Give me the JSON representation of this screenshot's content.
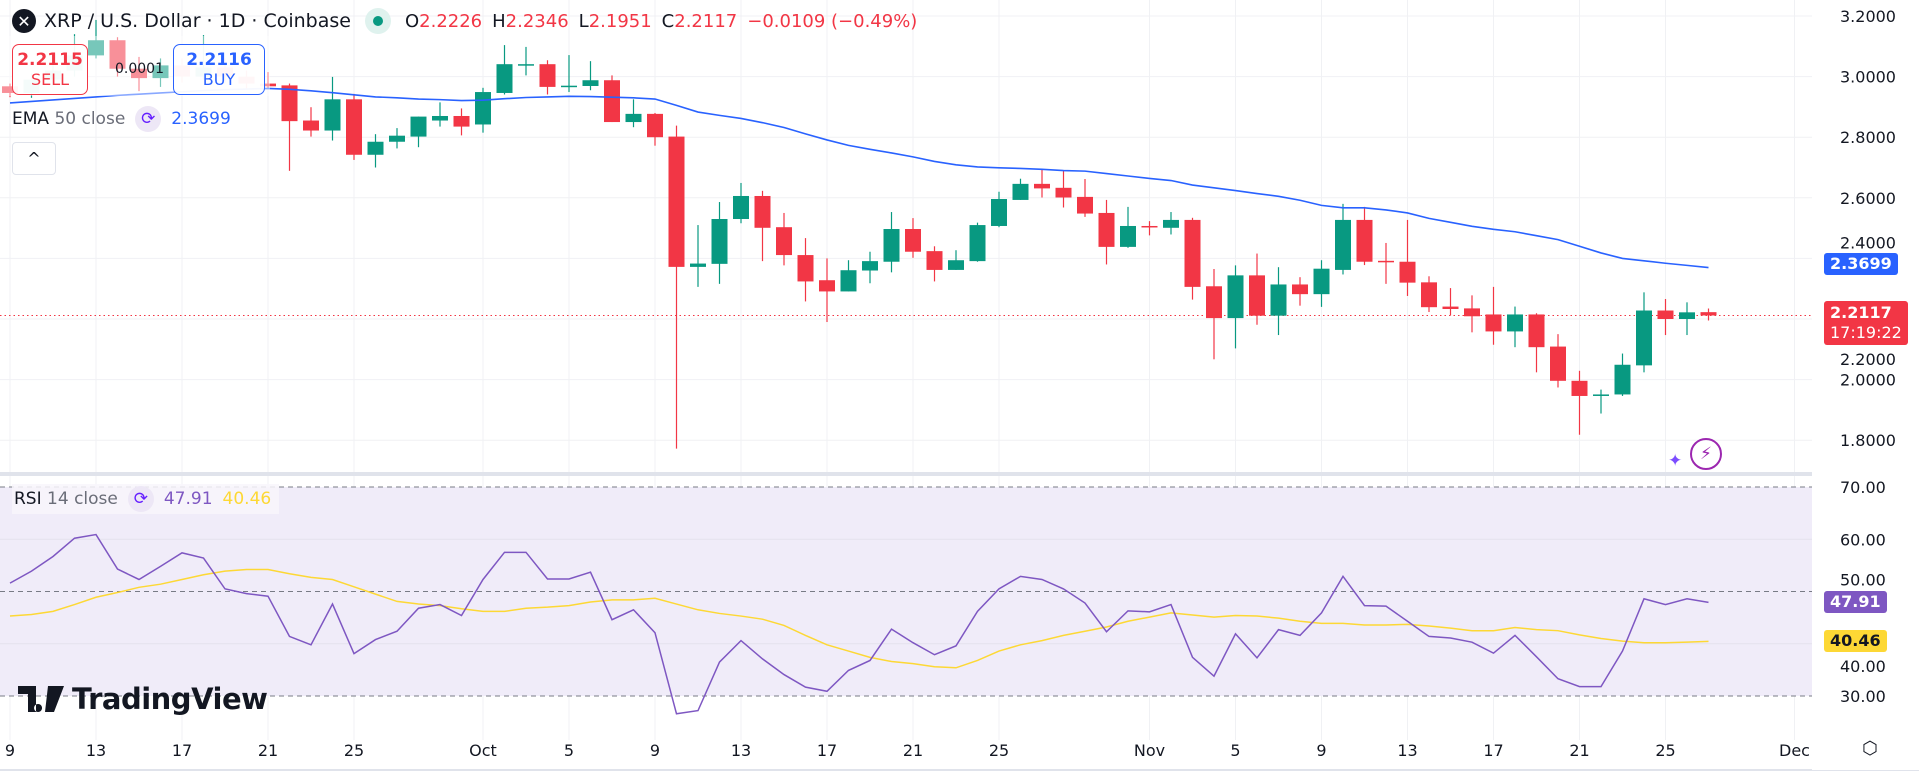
{
  "header": {
    "symbol_icon": "xrp-logo-icon",
    "title": "XRP / U.S. Dollar · 1D · Coinbase",
    "market_status": "market-open-dot-icon",
    "o_label": "O",
    "o_value": "2.2226",
    "h_label": "H",
    "h_value": "2.2346",
    "l_label": "L",
    "l_value": "2.1951",
    "c_label": "C",
    "c_value": "2.2117",
    "change": "−0.0109 (−0.49%)"
  },
  "trade": {
    "sell_price": "2.2115",
    "sell_label": "SELL",
    "buy_price": "2.2116",
    "buy_label": "BUY",
    "spread": "0.0001"
  },
  "ema_legend": {
    "name": "EMA",
    "args": "50 close",
    "value": "2.3699"
  },
  "rsi_legend": {
    "name": "RSI",
    "args": "14 close",
    "value": "47.91",
    "ma_value": "40.46"
  },
  "collapse_label": "^",
  "branding": "TradingView",
  "last_price_tag": {
    "price": "2.2117",
    "countdown": "17:19:22"
  },
  "ema_tag": "2.3699",
  "rsi_tag": "47.91",
  "rsi_ma_tag": "40.46",
  "colors": {
    "up": "#089981",
    "down": "#f23645",
    "ema": "#2962ff",
    "rsi": "#7e57c2",
    "rsi_ma": "#fdd835",
    "rsi_band": "#f0ecf9"
  },
  "chart_data": [
    {
      "type": "candlestick",
      "title": "XRP / U.S. Dollar · 1D · Coinbase",
      "ylim": [
        1.75,
        3.25
      ],
      "y_ticks": [
        "3.2000",
        "3.0000",
        "2.8000",
        "2.6000",
        "2.4000",
        "2.2000",
        "2.0000",
        "1.8000"
      ],
      "grid": true,
      "x_ticks": [
        {
          "label": "9",
          "date": "Sep 9"
        },
        {
          "label": "13",
          "date": "Sep 13"
        },
        {
          "label": "17",
          "date": "Sep 17"
        },
        {
          "label": "21",
          "date": "Sep 21"
        },
        {
          "label": "25",
          "date": "Sep 25"
        },
        {
          "label": "Oct",
          "date": "Oct 1"
        },
        {
          "label": "5",
          "date": "Oct 5"
        },
        {
          "label": "9",
          "date": "Oct 9"
        },
        {
          "label": "13",
          "date": "Oct 13"
        },
        {
          "label": "17",
          "date": "Oct 17"
        },
        {
          "label": "21",
          "date": "Oct 21"
        },
        {
          "label": "25",
          "date": "Oct 25"
        },
        {
          "label": "Nov",
          "date": "Nov 1"
        },
        {
          "label": "5",
          "date": "Nov 5"
        },
        {
          "label": "9",
          "date": "Nov 9"
        },
        {
          "label": "13",
          "date": "Nov 13"
        },
        {
          "label": "17",
          "date": "Nov 17"
        },
        {
          "label": "21",
          "date": "Nov 21"
        },
        {
          "label": "25",
          "date": "Nov 25"
        },
        {
          "label": "Dec",
          "date": "Dec 1"
        }
      ],
      "last_price": 2.2117,
      "candles_fields": [
        "date",
        "open",
        "high",
        "low",
        "close"
      ],
      "candles": [
        [
          "Sep 9",
          2.968,
          2.977,
          2.932,
          2.946
        ],
        [
          "Sep 10",
          2.946,
          3.01,
          2.93,
          2.99
        ],
        [
          "Sep 11",
          2.99,
          3.04,
          2.97,
          3.02
        ],
        [
          "Sep 12",
          3.02,
          3.14,
          3.0,
          3.07
        ],
        [
          "Sep 13",
          3.07,
          3.187,
          3.06,
          3.12
        ],
        [
          "Sep 14",
          3.12,
          3.13,
          3.0,
          3.026
        ],
        [
          "Sep 15",
          3.026,
          3.065,
          2.952,
          2.995
        ],
        [
          "Sep 16",
          2.995,
          3.06,
          2.966,
          3.037
        ],
        [
          "Sep 17",
          3.037,
          3.06,
          2.98,
          3.0
        ],
        [
          "Sep 18",
          3.0,
          3.137,
          2.99,
          3.03
        ],
        [
          "Sep 19",
          3.03,
          3.06,
          2.98,
          3.0
        ],
        [
          "Sep 20",
          3.0,
          3.02,
          2.96,
          2.977
        ],
        [
          "Sep 21",
          2.977,
          3.015,
          2.96,
          2.968
        ],
        [
          "Sep 22",
          2.971,
          2.977,
          2.689,
          2.853
        ],
        [
          "Sep 23",
          2.855,
          2.899,
          2.802,
          2.822
        ],
        [
          "Sep 24",
          2.822,
          2.999,
          2.789,
          2.925
        ],
        [
          "Sep 25",
          2.925,
          2.943,
          2.725,
          2.742
        ],
        [
          "Sep 26",
          2.742,
          2.81,
          2.7,
          2.785
        ],
        [
          "Sep 27",
          2.785,
          2.83,
          2.763,
          2.805
        ],
        [
          "Sep 28",
          2.802,
          2.868,
          2.767,
          2.868
        ],
        [
          "Sep 29",
          2.855,
          2.915,
          2.835,
          2.87
        ],
        [
          "Sep 30",
          2.87,
          2.895,
          2.806,
          2.835
        ],
        [
          "Oct 1",
          2.842,
          2.963,
          2.815,
          2.949
        ],
        [
          "Oct 2",
          2.946,
          3.104,
          2.941,
          3.041
        ],
        [
          "Oct 3",
          3.038,
          3.098,
          3.004,
          3.041
        ],
        [
          "Oct 4",
          3.041,
          3.054,
          2.941,
          2.966
        ],
        [
          "Oct 5",
          2.968,
          3.071,
          2.949,
          2.97
        ],
        [
          "Oct 6",
          2.969,
          3.051,
          2.955,
          2.988
        ],
        [
          "Oct 7",
          2.988,
          3.004,
          2.85,
          2.85
        ],
        [
          "Oct 8",
          2.85,
          2.925,
          2.833,
          2.877
        ],
        [
          "Oct 9",
          2.877,
          2.88,
          2.772,
          2.8
        ],
        [
          "Oct 10",
          2.802,
          2.838,
          1.772,
          2.372
        ],
        [
          "Oct 11",
          2.372,
          2.51,
          2.306,
          2.383
        ],
        [
          "Oct 12",
          2.382,
          2.586,
          2.316,
          2.53
        ],
        [
          "Oct 13",
          2.53,
          2.649,
          2.516,
          2.606
        ],
        [
          "Oct 14",
          2.606,
          2.623,
          2.391,
          2.501
        ],
        [
          "Oct 15",
          2.503,
          2.55,
          2.377,
          2.411
        ],
        [
          "Oct 16",
          2.411,
          2.467,
          2.258,
          2.324
        ],
        [
          "Oct 17",
          2.328,
          2.4,
          2.19,
          2.291
        ],
        [
          "Oct 18",
          2.291,
          2.394,
          2.291,
          2.361
        ],
        [
          "Oct 19",
          2.36,
          2.422,
          2.318,
          2.391
        ],
        [
          "Oct 20",
          2.389,
          2.553,
          2.354,
          2.497
        ],
        [
          "Oct 21",
          2.497,
          2.533,
          2.402,
          2.422
        ],
        [
          "Oct 22",
          2.424,
          2.44,
          2.324,
          2.362
        ],
        [
          "Oct 23",
          2.362,
          2.427,
          2.362,
          2.394
        ],
        [
          "Oct 24",
          2.391,
          2.518,
          2.389,
          2.51
        ],
        [
          "Oct 25",
          2.507,
          2.62,
          2.503,
          2.596
        ],
        [
          "Oct 26",
          2.593,
          2.663,
          2.593,
          2.646
        ],
        [
          "Oct 27",
          2.646,
          2.695,
          2.601,
          2.631
        ],
        [
          "Oct 28",
          2.633,
          2.689,
          2.568,
          2.601
        ],
        [
          "Oct 29",
          2.603,
          2.662,
          2.537,
          2.548
        ],
        [
          "Oct 30",
          2.55,
          2.593,
          2.38,
          2.438
        ],
        [
          "Oct 31",
          2.438,
          2.57,
          2.435,
          2.507
        ],
        [
          "Nov 1",
          2.507,
          2.523,
          2.476,
          2.503
        ],
        [
          "Nov 2",
          2.501,
          2.553,
          2.479,
          2.527
        ],
        [
          "Nov 3",
          2.527,
          2.534,
          2.264,
          2.306
        ],
        [
          "Nov 4",
          2.308,
          2.365,
          2.067,
          2.203
        ],
        [
          "Nov 5",
          2.203,
          2.377,
          2.103,
          2.344
        ],
        [
          "Nov 6",
          2.344,
          2.416,
          2.181,
          2.211
        ],
        [
          "Nov 7",
          2.211,
          2.371,
          2.147,
          2.314
        ],
        [
          "Nov 8",
          2.314,
          2.338,
          2.244,
          2.282
        ],
        [
          "Nov 9",
          2.282,
          2.394,
          2.24,
          2.366
        ],
        [
          "Nov 10",
          2.362,
          2.58,
          2.347,
          2.527
        ],
        [
          "Nov 11",
          2.527,
          2.57,
          2.378,
          2.389
        ],
        [
          "Nov 12",
          2.392,
          2.451,
          2.316,
          2.389
        ],
        [
          "Nov 13",
          2.389,
          2.527,
          2.276,
          2.32
        ],
        [
          "Nov 14",
          2.321,
          2.341,
          2.223,
          2.239
        ],
        [
          "Nov 15",
          2.241,
          2.302,
          2.212,
          2.233
        ],
        [
          "Nov 16",
          2.235,
          2.278,
          2.156,
          2.209
        ],
        [
          "Nov 17",
          2.215,
          2.306,
          2.115,
          2.159
        ],
        [
          "Nov 18",
          2.159,
          2.241,
          2.107,
          2.215
        ],
        [
          "Nov 19",
          2.215,
          2.219,
          2.024,
          2.107
        ],
        [
          "Nov 20",
          2.109,
          2.15,
          1.974,
          1.996
        ],
        [
          "Nov 21",
          1.996,
          2.029,
          1.818,
          1.946
        ],
        [
          "Nov 22",
          1.946,
          1.967,
          1.888,
          1.951
        ],
        [
          "Nov 23",
          1.951,
          2.086,
          1.946,
          2.049
        ],
        [
          "Nov 24",
          2.047,
          2.288,
          2.024,
          2.228
        ],
        [
          "Nov 25",
          2.228,
          2.266,
          2.147,
          2.2
        ],
        [
          "Nov 26",
          2.2,
          2.255,
          2.147,
          2.222
        ],
        [
          "Nov 27",
          2.2226,
          2.2346,
          2.1951,
          2.2117
        ]
      ],
      "series": [
        {
          "name": "EMA 50 close",
          "type": "line",
          "values": [
            2.913,
            2.918,
            2.923,
            2.928,
            2.933,
            2.938,
            2.942,
            2.946,
            2.95,
            2.954,
            2.957,
            2.959,
            2.961,
            2.958,
            2.953,
            2.947,
            2.94,
            2.933,
            2.93,
            2.926,
            2.924,
            2.921,
            2.922,
            2.927,
            2.931,
            2.933,
            2.935,
            2.934,
            2.932,
            2.93,
            2.926,
            2.905,
            2.883,
            2.872,
            2.862,
            2.848,
            2.832,
            2.811,
            2.791,
            2.773,
            2.76,
            2.748,
            2.735,
            2.72,
            2.709,
            2.702,
            2.699,
            2.697,
            2.694,
            2.69,
            2.688,
            2.68,
            2.672,
            2.664,
            2.657,
            2.642,
            2.633,
            2.624,
            2.614,
            2.605,
            2.592,
            2.575,
            2.567,
            2.567,
            2.56,
            2.55,
            2.532,
            2.519,
            2.506,
            2.496,
            2.488,
            2.475,
            2.462,
            2.44,
            2.418,
            2.4,
            2.392,
            2.384,
            2.377,
            2.3699
          ]
        }
      ]
    },
    {
      "type": "line",
      "title": "RSI 14 close",
      "ylim": [
        25,
        72
      ],
      "y_ticks": [
        "70.00",
        "60.00",
        "50.00",
        "40.00",
        "30.00"
      ],
      "bands": {
        "upper": 70,
        "middle": 50,
        "lower": 30
      },
      "series": [
        {
          "name": "RSI",
          "values": [
            51.6,
            53.9,
            56.7,
            60.2,
            60.9,
            54.3,
            52.3,
            54.8,
            57.4,
            56.4,
            50.5,
            49.6,
            49.1,
            41.4,
            39.8,
            47.6,
            38.1,
            40.8,
            42.4,
            46.8,
            47.5,
            45.4,
            52.3,
            57.5,
            57.5,
            52.4,
            52.4,
            53.7,
            44.6,
            46.5,
            42.1,
            26.6,
            27.2,
            36.5,
            40.6,
            37.1,
            34.1,
            31.7,
            30.9,
            34.9,
            36.8,
            42.8,
            40.2,
            37.9,
            39.6,
            46.2,
            50.5,
            52.9,
            52.3,
            50.5,
            47.8,
            42.3,
            46.3,
            46.1,
            47.5,
            37.4,
            33.8,
            41.9,
            37.3,
            42.7,
            41.6,
            45.9,
            52.9,
            47.3,
            47.2,
            44.3,
            41.4,
            41.1,
            40.3,
            38.2,
            41.6,
            37.5,
            33.3,
            31.8,
            31.8,
            38.6,
            48.6,
            47.5,
            48.6,
            47.91
          ]
        },
        {
          "name": "RSI-based MA",
          "values": [
            45.3,
            45.6,
            46.2,
            47.5,
            48.9,
            49.8,
            50.8,
            51.4,
            52.3,
            53.2,
            53.9,
            54.2,
            54.2,
            53.4,
            52.7,
            52.3,
            50.9,
            49.5,
            48.1,
            47.6,
            47.3,
            46.7,
            46.2,
            46.2,
            46.8,
            47.0,
            47.3,
            48.0,
            48.4,
            48.4,
            48.7,
            47.6,
            46.5,
            45.8,
            45.3,
            44.7,
            43.5,
            41.6,
            39.8,
            38.6,
            37.4,
            36.6,
            36.2,
            35.6,
            35.4,
            36.8,
            38.6,
            39.8,
            40.6,
            41.6,
            42.4,
            43.2,
            44.3,
            45.1,
            45.9,
            45.5,
            45.1,
            45.4,
            45.3,
            44.9,
            44.3,
            43.9,
            43.9,
            43.6,
            43.6,
            43.7,
            43.4,
            43.0,
            42.5,
            42.5,
            43.1,
            42.7,
            42.5,
            41.7,
            41.0,
            40.5,
            40.2,
            40.2,
            40.3,
            40.46
          ]
        }
      ]
    }
  ]
}
